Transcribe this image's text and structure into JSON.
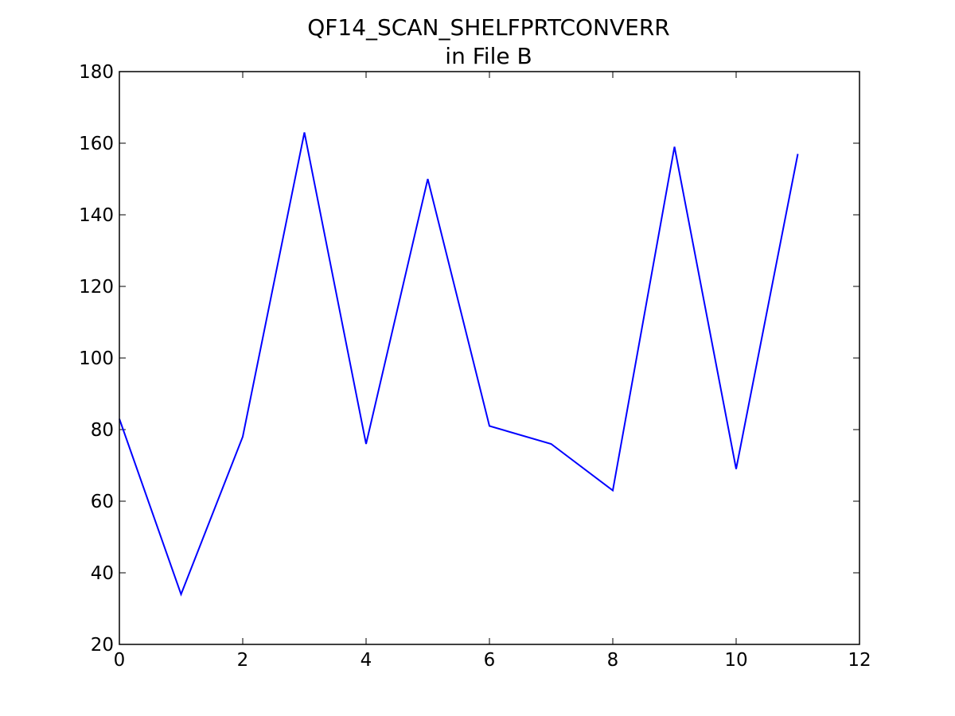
{
  "chart_data": {
    "type": "line",
    "title_lines": [
      "QF14_SCAN_SHELFPRTCONVERR",
      "in File B"
    ],
    "xlabel": "",
    "ylabel": "",
    "xlim": [
      0,
      12
    ],
    "ylim": [
      20,
      180
    ],
    "xticks": [
      0,
      2,
      4,
      6,
      8,
      10,
      12
    ],
    "yticks": [
      20,
      40,
      60,
      80,
      100,
      120,
      140,
      160,
      180
    ],
    "grid": false,
    "series": [
      {
        "color": "#0000ff",
        "x": [
          0,
          1,
          2,
          3,
          4,
          5,
          6,
          7,
          8,
          9,
          10,
          11
        ],
        "y": [
          83,
          34,
          78,
          163,
          76,
          150,
          81,
          76,
          63,
          159,
          69,
          157
        ]
      }
    ]
  }
}
